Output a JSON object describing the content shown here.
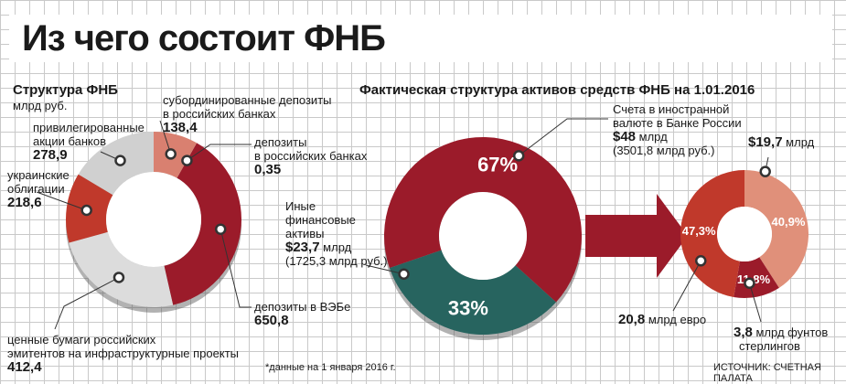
{
  "title": "Из чего состоит ФНБ",
  "left_subtitle": "Структура ФНБ",
  "left_units": "млрд руб.",
  "right_subtitle": "Фактическая структура активов средств ФНБ на 1.01.2016",
  "footnote": "*данные на 1 января 2016 г.",
  "source": "ИСТОЧНИК: СЧЕТНАЯ ПАЛАТА",
  "colors": {
    "dark_red": "#9b1b2a",
    "red": "#c0392b",
    "salmon": "#d98070",
    "light_gray": "#d9d9d9",
    "teal": "#27645f"
  },
  "chart_data": [
    {
      "type": "pie",
      "title": "Структура ФНБ",
      "units": "млрд руб.",
      "slices": [
        {
          "name": "субординированные депозиты в российских банках",
          "value": 138.4,
          "value_label": "138,4",
          "color": "#d98070"
        },
        {
          "name": "депозиты в российских банках",
          "value": 0.35,
          "value_label": "0,35",
          "color": "#e8b0a5"
        },
        {
          "name": "депозиты в ВЭБе",
          "value": 650.8,
          "value_label": "650,8",
          "color": "#9b1b2a"
        },
        {
          "name": "ценные бумаги российских эмитентов на инфраструктурные проекты",
          "value": 412.4,
          "value_label": "412,4",
          "color": "#dcdcdc"
        },
        {
          "name": "украинские облигации",
          "value": 218.6,
          "value_label": "218,6",
          "color": "#c0392b"
        },
        {
          "name": "привилегированные акции банков",
          "value": 278.9,
          "value_label": "278,9",
          "color": "#d0d0d0"
        }
      ]
    },
    {
      "type": "pie",
      "title": "Фактическая структура активов средств ФНБ на 1.01.2016",
      "slices": [
        {
          "name": "Счета в иностранной валюте в Банке России",
          "value": 67,
          "pct_label": "67%",
          "amount": "$48 млрд",
          "amount_rub": "(3501,8 млрд руб.)",
          "color": "#9b1b2a"
        },
        {
          "name": "Иные финансовые активы",
          "value": 33,
          "pct_label": "33%",
          "amount": "$23,7 млрд",
          "amount_rub": "(1725,3 млрд руб.)",
          "color": "#27645f"
        }
      ]
    },
    {
      "type": "pie",
      "title": "",
      "slices": [
        {
          "name": "$",
          "value": 40.9,
          "pct_label": "40,9%",
          "amount": "$19,7 млрд",
          "color": "#e0907a"
        },
        {
          "name": "фунты стерлингов",
          "value": 11.8,
          "pct_label": "11,8%",
          "amount": "3,8 млрд фунтов стерлингов",
          "color": "#9b1b2a"
        },
        {
          "name": "евро",
          "value": 47.3,
          "pct_label": "47,3%",
          "amount": "20,8 млрд евро",
          "color": "#c0392b"
        }
      ]
    }
  ],
  "labels": {
    "sub_dep_1": "субординированные депозиты",
    "sub_dep_2": "в российских банках",
    "sub_dep_val": "138,4",
    "dep_rus_1": "депозиты",
    "dep_rus_2": "в российских банках",
    "dep_rus_val": "0,35",
    "pref_1": "привилегированные",
    "pref_2": "акции банков",
    "pref_val": "278,9",
    "ukr_1": "украинские",
    "ukr_2": "облигации",
    "ukr_val": "218,6",
    "veb_1": "депозиты в ВЭБе",
    "veb_val": "650,8",
    "sec_1": "ценные бумаги российских",
    "sec_2": "эмитентов на инфраструктурные проекты",
    "sec_val": "412,4",
    "acc_1": "Счета в иностранной",
    "acc_2": "валюте в Банке России",
    "acc_val": "$48",
    "acc_unit": "млрд",
    "acc_rub": "(3501,8 млрд руб.)",
    "oth_1": "Иные",
    "oth_2": "финансовые",
    "oth_3": "активы",
    "oth_val": "$23,7",
    "oth_unit": "млрд",
    "oth_rub": "(1725,3 млрд руб.)",
    "usd_val": "$19,7",
    "usd_unit": "млрд",
    "eur_val": "20,8",
    "eur_unit": "млрд евро",
    "gbp_val": "3,8",
    "gbp_unit": "млрд фунтов",
    "gbp_2": "стерлингов"
  }
}
